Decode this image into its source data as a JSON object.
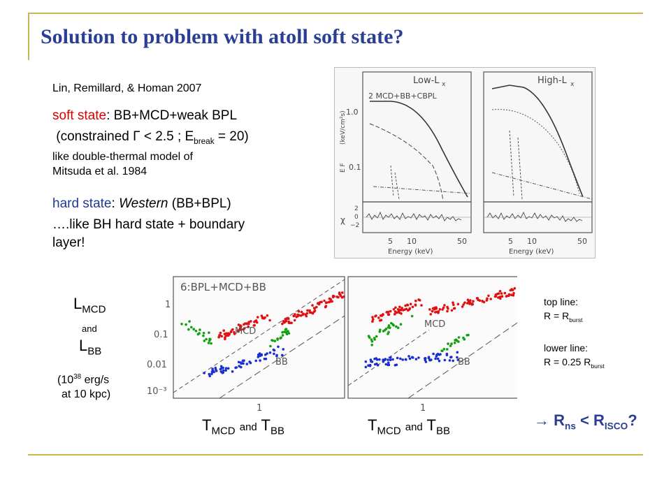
{
  "title": "Solution to problem with atoll soft state?",
  "citation": "Lin, Remillard, & Homan 2007",
  "soft_state": {
    "label": "soft state",
    "model": ": BB+MCD+weak BPL",
    "constraint_open": " (constrained ",
    "gamma": "Γ",
    "constraint_mid": " < 2.5 ; E",
    "break_sub": "break",
    "constraint_close": " = 20)",
    "note1": "like double-thermal model of",
    "note2": "Mitsuda et al. 1984"
  },
  "hard_state": {
    "label": "hard state",
    "colon": ": ",
    "western": "Western",
    "model": " (BB+BPL)",
    "line2": "….like BH hard state + boundary",
    "line3": "layer!"
  },
  "spectra": {
    "low_label": "Low-L",
    "high_label": "High-L",
    "x_sub": "x",
    "model_label": "2 MCD+BB+CBPL",
    "y_axis": "E F",
    "y_axis_sub": "E",
    "y_units": "(keV/cm²s)",
    "y_ticks": [
      "1.0",
      "0.1"
    ],
    "resid_label": "χ",
    "resid_ticks": [
      "2",
      "0",
      "−2"
    ],
    "x_ticks": [
      "5",
      "10",
      "50"
    ],
    "x_label": "Energy (keV)"
  },
  "lum_left": {
    "L": "L",
    "mcd_sub": "MCD",
    "and": "and",
    "bb_sub": "BB",
    "unit_open": "(10",
    "unit_sup": "38",
    "unit_rest": " erg/s",
    "unit_line2": "at 10 kpc)"
  },
  "scatter": {
    "panel_label": "6:BPL+MCD+BB",
    "y_ticks": [
      "1",
      "0.1",
      "0.01",
      "10⁻³"
    ],
    "x_tick": "1",
    "mcd_label": "MCD",
    "bb_label": "BB",
    "caption_T": "T",
    "caption_mcd": "MCD",
    "caption_and": "and",
    "caption_bb": "BB"
  },
  "legend": {
    "top_line": "top line:",
    "top_eq": "R = R",
    "top_sub": "burst",
    "lower_line": "lower line:",
    "lower_eq": "R = 0.25 R",
    "lower_sub": "burst"
  },
  "conclusion": {
    "arrow": "→",
    "R": "R",
    "ns_sub": "ns",
    "lt": " < R",
    "isco_sub": "ISCO",
    "q": "?"
  },
  "colors": {
    "title": "#2a3f93",
    "soft_label": "#d80000",
    "hard_label": "#1f3a93",
    "rule": "#c8b450",
    "series_red": "#e01010",
    "series_blue": "#1a2fd0",
    "series_green": "#10a010"
  }
}
